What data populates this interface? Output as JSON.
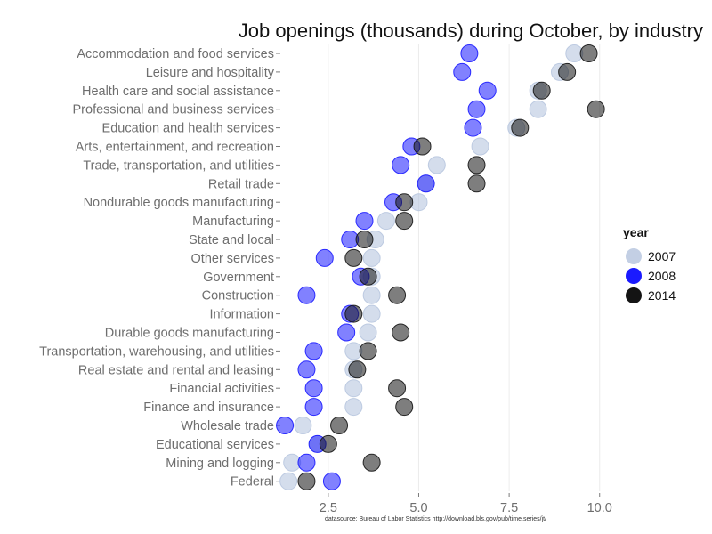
{
  "chart_data": {
    "type": "scatter",
    "title": "Job openings (thousands) during October, by industry",
    "source": "datasource:  Bureau of Labor Statistics http://download.bls.gov/pub/time.series/jt/",
    "xlim": [
      1.2,
      10.4
    ],
    "xticks": [
      2.5,
      5.0,
      7.5,
      10.0
    ],
    "xtick_labels": [
      "2.5",
      "5.0",
      "7.5",
      "10.0"
    ],
    "grid": "vertical major lines",
    "legend": {
      "title": "year",
      "position": "right",
      "entries": [
        {
          "label": "2007",
          "color": "#b8c7df"
        },
        {
          "label": "2008",
          "color": "#1a1aff"
        },
        {
          "label": "2014",
          "color": "#141414"
        }
      ]
    },
    "categories": [
      "Accommodation and food services",
      "Leisure and hospitality",
      "Health care and social assistance",
      "Professional and business services",
      "Education and health services",
      "Arts, entertainment, and recreation",
      "Trade, transportation, and utilities",
      "Retail trade",
      "Nondurable goods manufacturing",
      "Manufacturing",
      "State and local",
      "Other services",
      "Government",
      "Construction",
      "Information",
      "Durable goods manufacturing",
      "Transportation, warehousing, and utilities",
      "Real estate and rental and leasing",
      "Financial activities",
      "Finance and insurance",
      "Wholesale trade",
      "Educational services",
      "Mining and logging",
      "Federal"
    ],
    "series": [
      {
        "name": "2007",
        "color": "#b8c7df",
        "opacity": 0.6,
        "values": [
          9.3,
          8.9,
          8.3,
          8.3,
          7.7,
          6.7,
          5.5,
          5.2,
          5.0,
          4.1,
          3.8,
          3.7,
          3.7,
          3.7,
          3.7,
          3.6,
          3.2,
          3.2,
          3.2,
          3.2,
          1.8,
          2.2,
          1.5,
          1.4
        ]
      },
      {
        "name": "2008",
        "color": "#1a1aff",
        "opacity": 0.55,
        "values": [
          6.4,
          6.2,
          6.9,
          6.6,
          6.5,
          4.8,
          4.5,
          5.2,
          4.3,
          3.5,
          3.1,
          2.4,
          3.4,
          1.9,
          3.1,
          3.0,
          2.1,
          1.9,
          2.1,
          2.1,
          1.3,
          2.2,
          1.9,
          2.6
        ]
      },
      {
        "name": "2014",
        "color": "#141414",
        "opacity": 0.55,
        "values": [
          9.7,
          9.1,
          8.4,
          9.9,
          7.8,
          5.1,
          6.6,
          6.6,
          4.6,
          4.6,
          3.5,
          3.2,
          3.6,
          4.4,
          3.2,
          4.5,
          3.6,
          3.3,
          4.4,
          4.6,
          2.8,
          2.5,
          3.7,
          1.9
        ]
      }
    ]
  }
}
